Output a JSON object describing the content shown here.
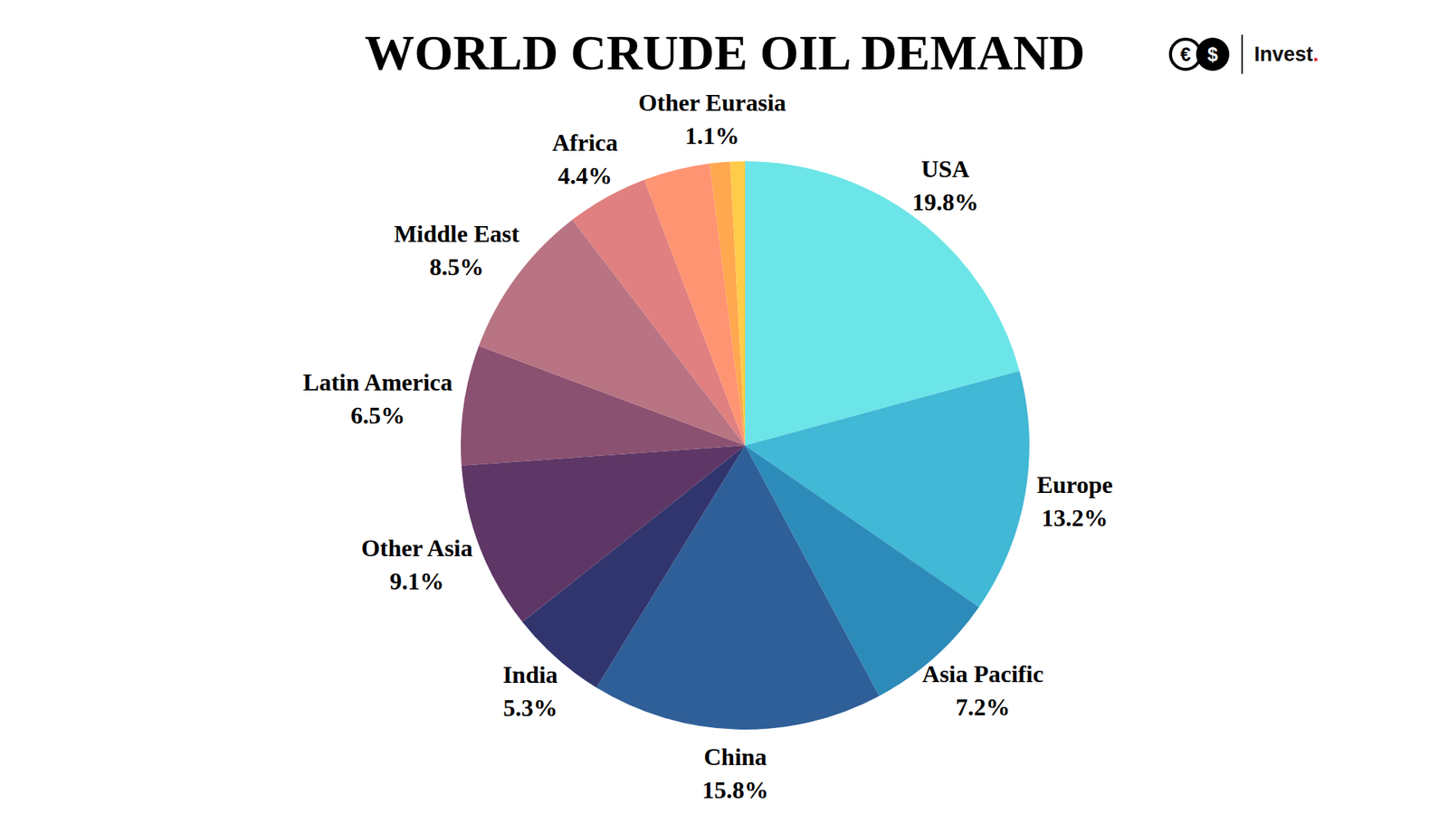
{
  "chart_data": {
    "type": "pie",
    "title": "WORLD CRUDE OIL DEMAND",
    "categories": [
      "USA",
      "Europe",
      "Asia Pacific",
      "China",
      "India",
      "Other Asia",
      "Latin America",
      "Middle East",
      "Africa",
      null,
      "Other Eurasia",
      null
    ],
    "values": [
      19.8,
      13.2,
      7.2,
      15.8,
      5.3,
      9.1,
      6.5,
      8.5,
      4.4,
      3.6,
      1.1,
      0.8
    ],
    "value_labels": [
      "19.8%",
      "13.2%",
      "7.2%",
      "15.8%",
      "5.3%",
      "9.1%",
      "6.5%",
      "8.5%",
      "4.4%",
      null,
      "1.1%",
      null
    ],
    "colors": [
      "#6ce5e8",
      "#41b8d5",
      "#2d8bba",
      "#2f5f98",
      "#31356e",
      "#5e3766",
      "#8a5170",
      "#b97483",
      "#e08080",
      "#ff9473",
      "#ffa84f",
      "#ffcc4a"
    ],
    "data_labels": true,
    "annotations": [
      "€",
      "$",
      "Invest."
    ]
  }
}
